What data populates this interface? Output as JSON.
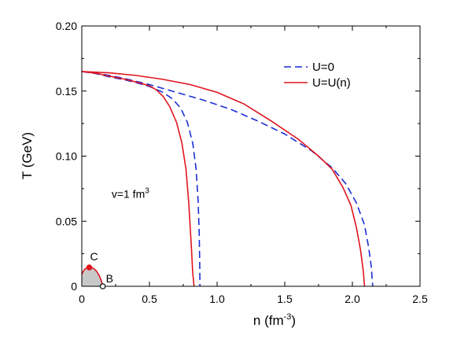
{
  "chart_data": {
    "type": "line",
    "title": "",
    "xlabel": "n (fm",
    "xlabel_sup": "-3",
    "xlabel_close": ")",
    "ylabel": "T (GeV)",
    "xlim": [
      0,
      2.5
    ],
    "ylim": [
      0,
      0.2
    ],
    "xticks": [
      0,
      0.5,
      1.0,
      1.5,
      2.0,
      2.5
    ],
    "xtick_labels": [
      "0",
      "0.5",
      "1.0",
      "1.5",
      "2.0",
      "2.5"
    ],
    "yticks": [
      0,
      0.05,
      0.1,
      0.15,
      0.2
    ],
    "ytick_labels": [
      "0",
      "0.05",
      "0.10",
      "0.15",
      "0.20"
    ],
    "grid": false,
    "legend_position": "top-right",
    "legend": [
      {
        "label": "U=0",
        "color": "#1a2fd6",
        "dash": true
      },
      {
        "label": "U=U(n)",
        "color": "#e0141e",
        "dash": false
      }
    ],
    "annotation": {
      "text": "v=1 fm",
      "sup": "3",
      "x": 0.22,
      "y": 0.068
    },
    "series": [
      {
        "name": "U=0",
        "color": "#1a2fd6",
        "dashed": true,
        "points": [
          [
            0,
            0.165
          ],
          [
            0.1,
            0.1635
          ],
          [
            0.2,
            0.161
          ],
          [
            0.3,
            0.159
          ],
          [
            0.4,
            0.1565
          ],
          [
            0.5,
            0.1535
          ],
          [
            0.6,
            0.149
          ],
          [
            0.67,
            0.144
          ],
          [
            0.73,
            0.137
          ],
          [
            0.78,
            0.126
          ],
          [
            0.82,
            0.11
          ],
          [
            0.845,
            0.09
          ],
          [
            0.86,
            0.065
          ],
          [
            0.868,
            0.04
          ],
          [
            0.872,
            0.015
          ],
          [
            0.873,
            0
          ]
        ]
      },
      {
        "name": "U=0",
        "color": "#1a2fd6",
        "dashed": true,
        "points": [
          [
            0,
            0.165
          ],
          [
            0.15,
            0.163
          ],
          [
            0.3,
            0.16
          ],
          [
            0.5,
            0.155
          ],
          [
            0.7,
            0.149
          ],
          [
            0.9,
            0.143
          ],
          [
            1.1,
            0.136
          ],
          [
            1.3,
            0.127
          ],
          [
            1.5,
            0.117
          ],
          [
            1.7,
            0.104
          ],
          [
            1.85,
            0.091
          ],
          [
            1.95,
            0.079
          ],
          [
            2.03,
            0.064
          ],
          [
            2.09,
            0.047
          ],
          [
            2.12,
            0.03
          ],
          [
            2.14,
            0.015
          ],
          [
            2.15,
            0
          ]
        ]
      },
      {
        "name": "U=U(n)",
        "color": "#e0141e",
        "dashed": false,
        "points": [
          [
            0,
            0.165
          ],
          [
            0.1,
            0.1638
          ],
          [
            0.2,
            0.1615
          ],
          [
            0.3,
            0.1595
          ],
          [
            0.4,
            0.157
          ],
          [
            0.5,
            0.154
          ],
          [
            0.55,
            0.151
          ],
          [
            0.6,
            0.146
          ],
          [
            0.65,
            0.138
          ],
          [
            0.7,
            0.126
          ],
          [
            0.74,
            0.11
          ],
          [
            0.77,
            0.09
          ],
          [
            0.79,
            0.065
          ],
          [
            0.81,
            0.03
          ],
          [
            0.82,
            0.01
          ],
          [
            0.83,
            0
          ]
        ]
      },
      {
        "name": "U=U(n)",
        "color": "#e0141e",
        "dashed": false,
        "points": [
          [
            0,
            0.165
          ],
          [
            0.2,
            0.164
          ],
          [
            0.4,
            0.162
          ],
          [
            0.6,
            0.159
          ],
          [
            0.8,
            0.155
          ],
          [
            1.0,
            0.149
          ],
          [
            1.2,
            0.14
          ],
          [
            1.4,
            0.127
          ],
          [
            1.6,
            0.113
          ],
          [
            1.75,
            0.1
          ],
          [
            1.85,
            0.09
          ],
          [
            1.93,
            0.076
          ],
          [
            1.99,
            0.062
          ],
          [
            2.03,
            0.045
          ],
          [
            2.06,
            0.028
          ],
          [
            2.08,
            0.012
          ],
          [
            2.09,
            0
          ]
        ]
      },
      {
        "name": "U=U(n)",
        "color": "#e0141e",
        "dashed": false,
        "points": [
          [
            0,
            0.009
          ],
          [
            0.01,
            0.0115
          ],
          [
            0.025,
            0.0135
          ],
          [
            0.05,
            0.0145
          ],
          [
            0.07,
            0.0145
          ],
          [
            0.09,
            0.0135
          ],
          [
            0.11,
            0.0115
          ],
          [
            0.13,
            0.008
          ],
          [
            0.145,
            0.004
          ],
          [
            0.155,
            0
          ]
        ]
      }
    ],
    "shaded_region": {
      "color": "#c8c8c8",
      "points": [
        [
          0,
          0
        ],
        [
          0,
          0.009
        ],
        [
          0.01,
          0.0115
        ],
        [
          0.025,
          0.0135
        ],
        [
          0.05,
          0.0145
        ],
        [
          0.07,
          0.0145
        ],
        [
          0.09,
          0.0135
        ],
        [
          0.11,
          0.0115
        ],
        [
          0.13,
          0.008
        ],
        [
          0.145,
          0.004
        ],
        [
          0.155,
          0
        ]
      ]
    },
    "points": [
      {
        "label": "C",
        "x": 0.055,
        "y": 0.0145,
        "filled": true,
        "color": "#e0141e"
      },
      {
        "label": "B",
        "x": 0.155,
        "y": 0,
        "filled": false,
        "color": "#000000"
      }
    ]
  }
}
